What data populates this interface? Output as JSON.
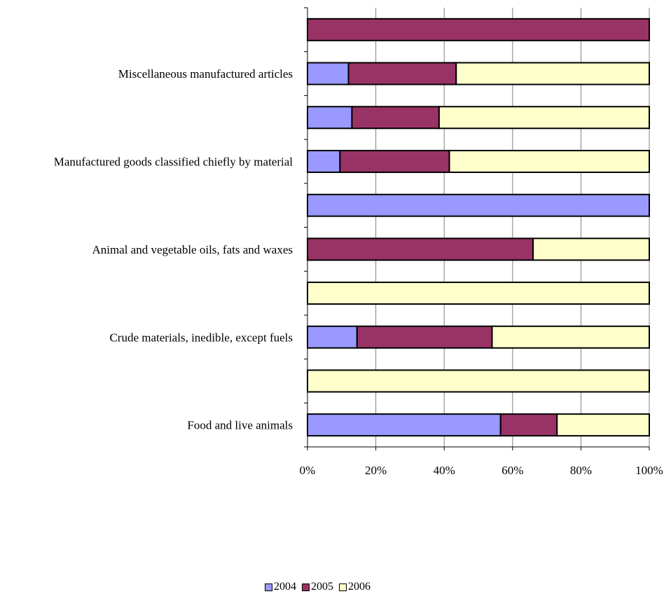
{
  "chart_data": {
    "type": "bar",
    "orientation": "horizontal",
    "stacked": "percent",
    "categories": [
      "Food and live animals",
      "",
      "Crude materials, inedible, except fuels",
      "",
      "Animal and vegetable oils, fats and waxes",
      "",
      "Manufactured goods classified chiefly by material",
      "",
      "Miscellaneous manufactured articles",
      ""
    ],
    "series": [
      {
        "name": "2004",
        "color": "#9999ff",
        "values": [
          56.5,
          0,
          14.5,
          0,
          0,
          100,
          9.5,
          13,
          12,
          0
        ]
      },
      {
        "name": "2005",
        "color": "#993366",
        "values": [
          16.5,
          0,
          39.5,
          0,
          66,
          0,
          32,
          25.5,
          31.5,
          100
        ]
      },
      {
        "name": "2006",
        "color": "#ffffcc",
        "values": [
          27,
          100,
          46,
          100,
          34,
          0,
          58.5,
          61.5,
          56.5,
          0
        ]
      }
    ],
    "xlim": [
      0,
      100
    ],
    "xticks": [
      "0%",
      "20%",
      "40%",
      "60%",
      "80%",
      "100%"
    ],
    "grid": "vertical",
    "legend_position": "bottom"
  }
}
